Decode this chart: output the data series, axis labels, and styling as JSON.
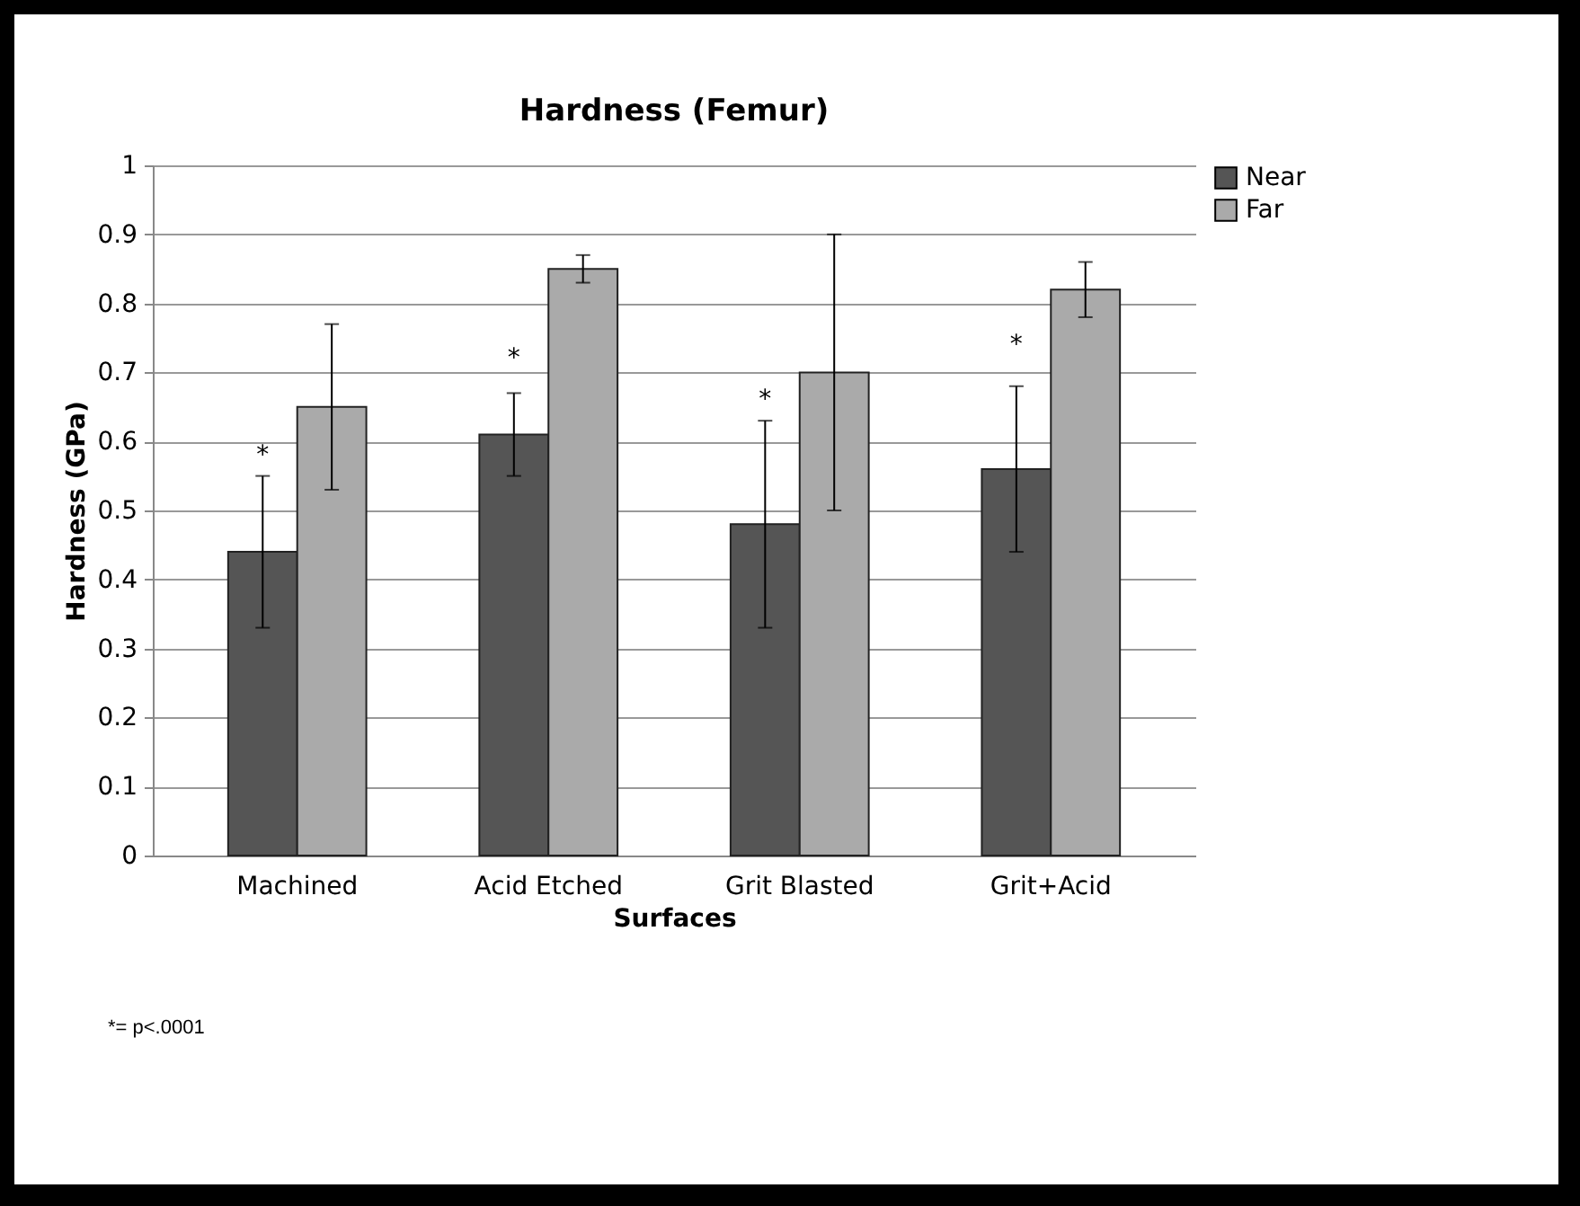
{
  "chart_data": {
    "type": "bar",
    "title": "Hardness (Femur)",
    "xlabel": "Surfaces",
    "ylabel": "Hardness (GPa)",
    "categories": [
      "Machined",
      "Acid Etched",
      "Grit Blasted",
      "Grit+Acid"
    ],
    "series": [
      {
        "name": "Near",
        "color": "#555555",
        "values": [
          0.44,
          0.61,
          0.48,
          0.56
        ],
        "errors": [
          [
            0.33,
            0.55
          ],
          [
            0.55,
            0.67
          ],
          [
            0.33,
            0.63
          ],
          [
            0.44,
            0.68
          ]
        ]
      },
      {
        "name": "Far",
        "color": "#aaaaaa",
        "values": [
          0.65,
          0.85,
          0.7,
          0.82
        ],
        "errors": [
          [
            0.53,
            0.77
          ],
          [
            0.83,
            0.87
          ],
          [
            0.5,
            0.9
          ],
          [
            0.78,
            0.86
          ]
        ]
      }
    ],
    "ylim": [
      0,
      1
    ],
    "yticks": [
      0,
      0.1,
      0.2,
      0.3,
      0.4,
      0.5,
      0.6,
      0.7,
      0.8,
      0.9,
      1
    ],
    "grid": "y",
    "legend": "right",
    "annotations": [
      {
        "text": "*",
        "x": "Machined",
        "y": 0.58
      },
      {
        "text": "*",
        "x": "Acid Etched",
        "y": 0.72
      },
      {
        "text": "*",
        "x": "Grit Blasted",
        "y": 0.66
      },
      {
        "text": "*",
        "x": "Grit+Acid",
        "y": 0.74
      },
      "*= p<.0001"
    ]
  }
}
